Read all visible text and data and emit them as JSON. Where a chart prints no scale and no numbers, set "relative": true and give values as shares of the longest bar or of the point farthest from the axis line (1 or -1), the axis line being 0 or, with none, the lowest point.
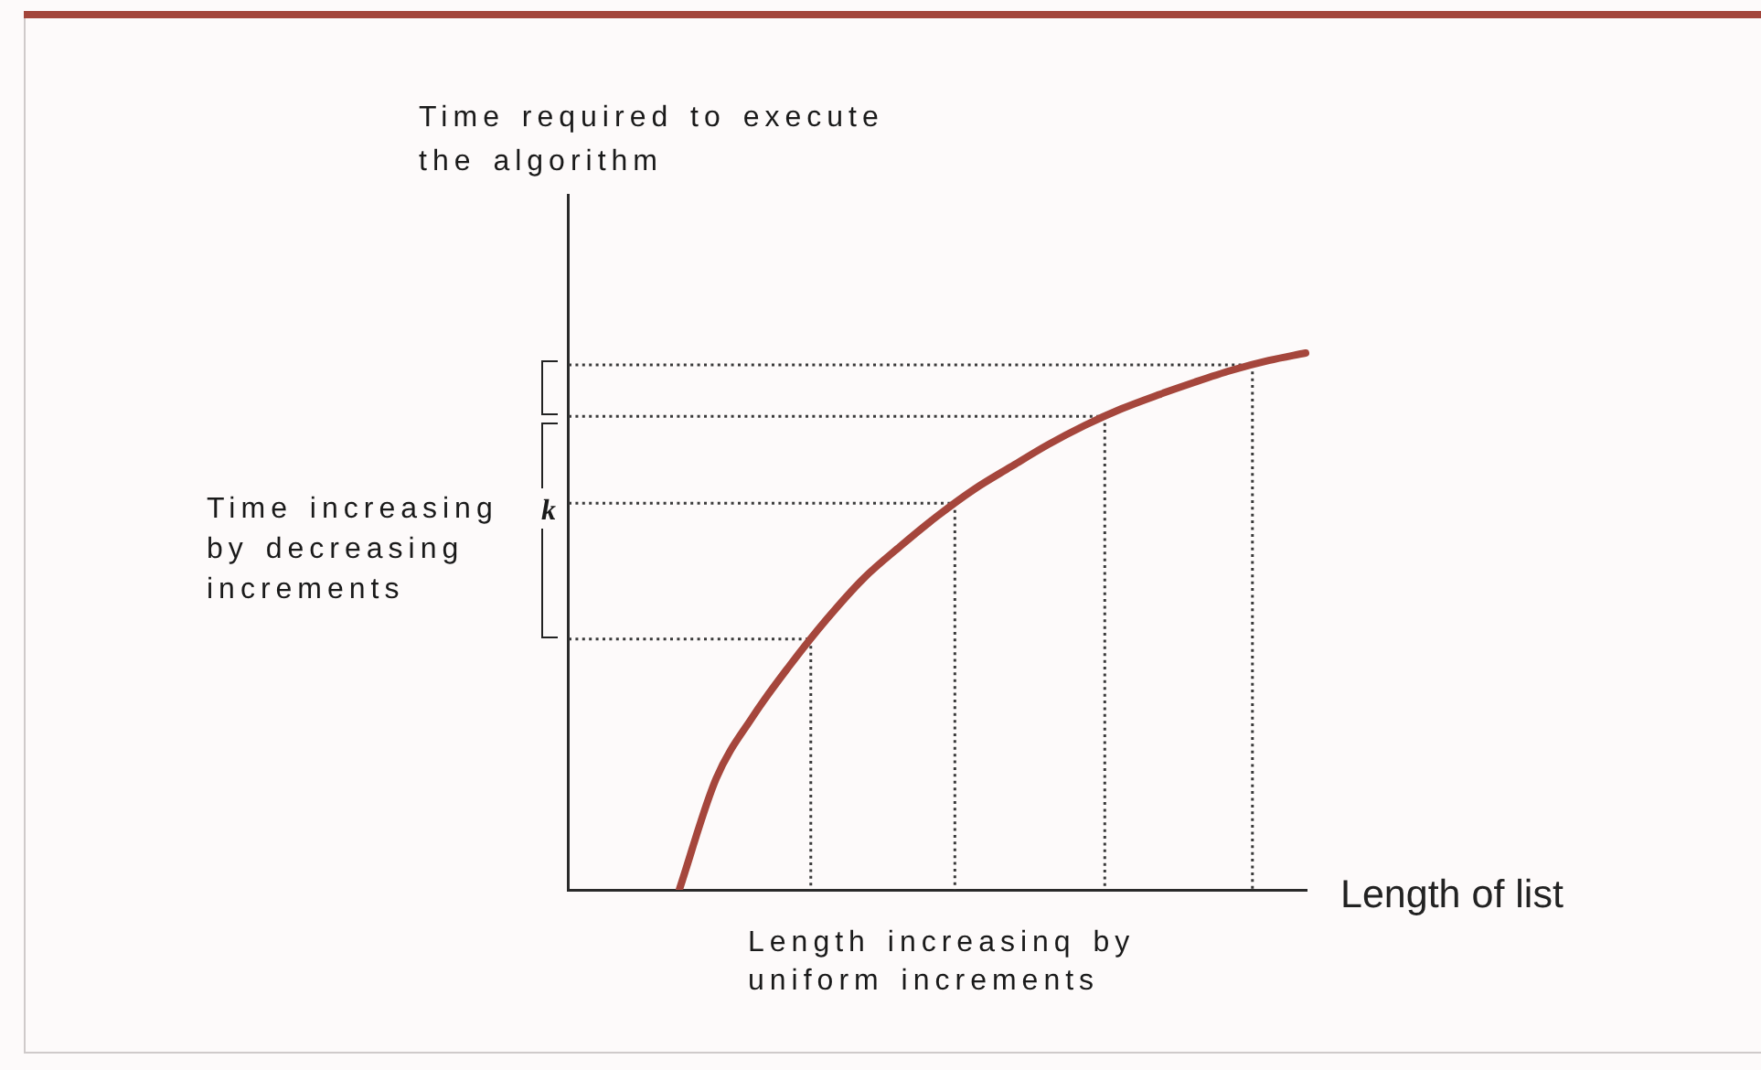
{
  "chart_data": {
    "type": "line",
    "xlabel": "Length of list",
    "annotations": [
      "Time required to execute the algorithm",
      "Time increasing by decreasing increments",
      "k",
      "Length increasinq by uniform increments"
    ],
    "categories": [
      null,
      null,
      null,
      null,
      null,
      null,
      null,
      null,
      null,
      null,
      null,
      null,
      null,
      null,
      null,
      null,
      null,
      null,
      null,
      null,
      null
    ],
    "values": [
      null,
      null,
      null,
      0,
      0.207,
      0.323,
      0.418,
      0.504,
      0.58,
      0.64,
      0.696,
      0.746,
      0.788,
      0.829,
      0.865,
      0.896,
      0.922,
      0.946,
      0.968,
      0.986,
      1
    ],
    "color": "#a5463c",
    "relative": true,
    "ref_lines": [
      {
        "axis": "y",
        "value": 0.467,
        "color": "#3a3a3a",
        "line_style": "dotted"
      },
      {
        "axis": "y",
        "value": 0.72,
        "color": "#3a3a3a",
        "line_style": "dotted"
      },
      {
        "axis": "y",
        "value": 0.882,
        "color": "#3a3a3a",
        "line_style": "dotted"
      },
      {
        "axis": "y",
        "value": 0.978,
        "color": "#3a3a3a",
        "line_style": "dotted"
      }
    ],
    "grid": false,
    "marker": "none",
    "line_style": "solid"
  }
}
